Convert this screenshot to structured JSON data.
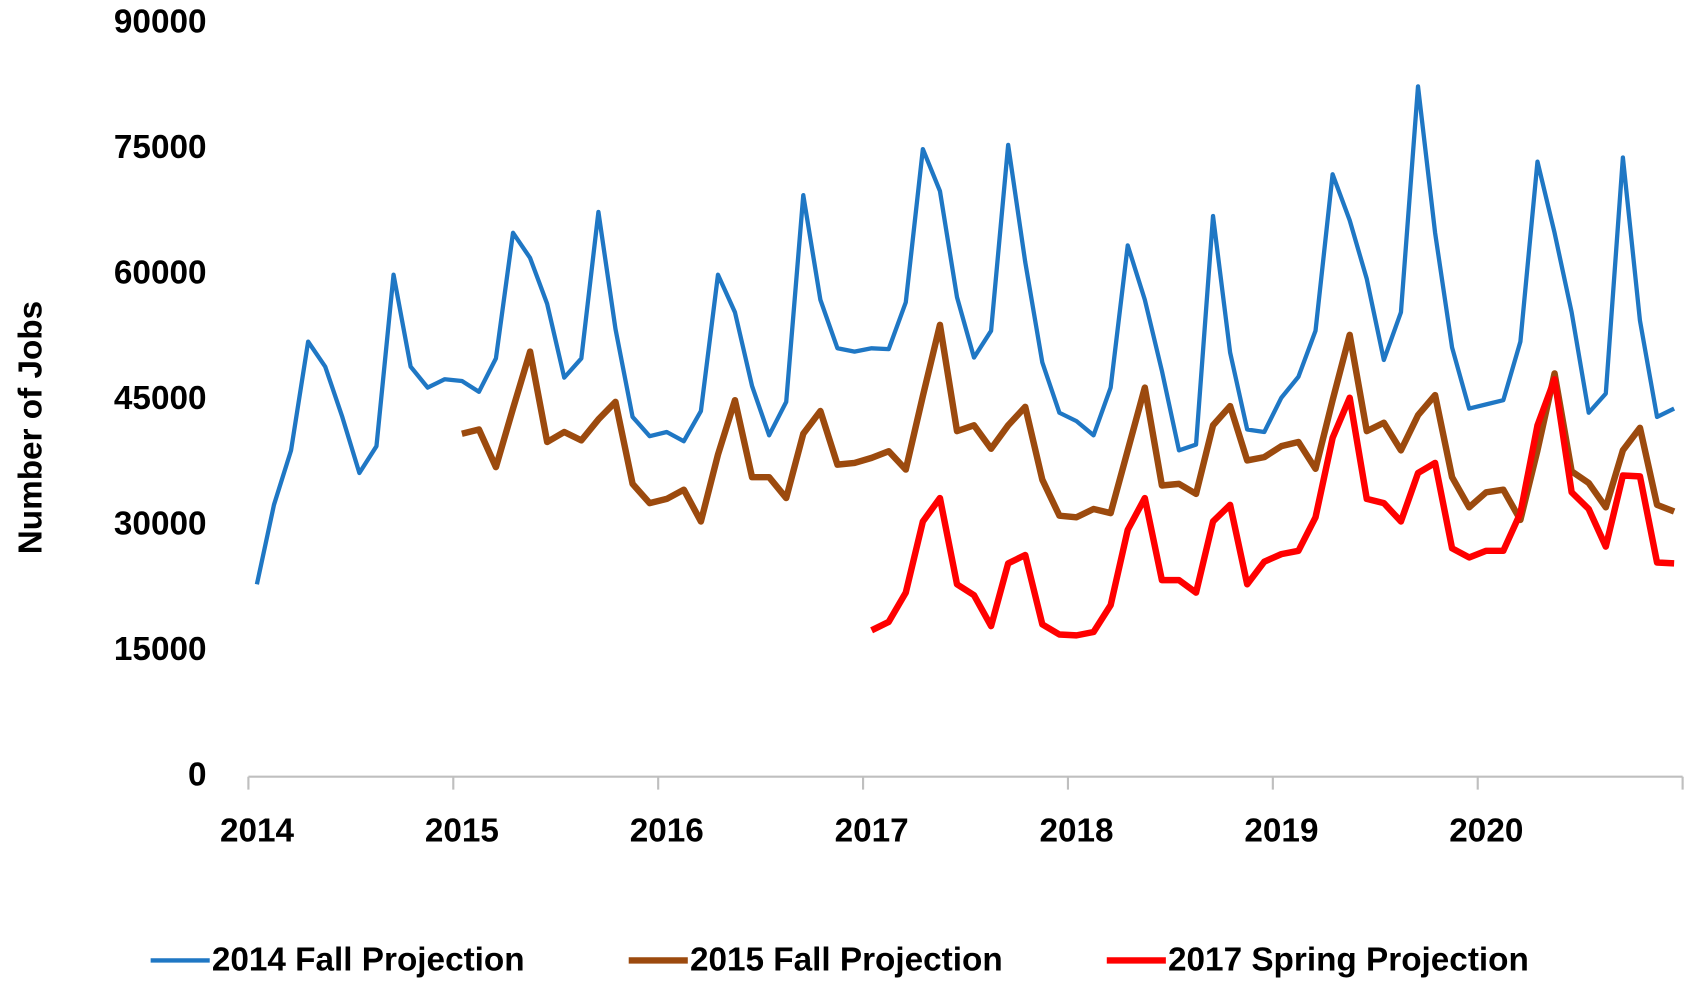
{
  "chart_data": {
    "type": "line",
    "y_label": "Number of Jobs",
    "categories": [
      "2014",
      null,
      null,
      null,
      null,
      null,
      null,
      null,
      null,
      null,
      null,
      null,
      "2015",
      null,
      null,
      null,
      null,
      null,
      null,
      null,
      null,
      null,
      null,
      null,
      "2016",
      null,
      null,
      null,
      null,
      null,
      null,
      null,
      null,
      null,
      null,
      null,
      "2017",
      null,
      null,
      null,
      null,
      null,
      null,
      null,
      null,
      null,
      null,
      null,
      "2018",
      null,
      null,
      null,
      null,
      null,
      null,
      null,
      null,
      null,
      null,
      null,
      "2019",
      null,
      null,
      null,
      null,
      null,
      null,
      null,
      null,
      null,
      null,
      null,
      "2020",
      null,
      null,
      null,
      null,
      null,
      null,
      null,
      null,
      null,
      null,
      null
    ],
    "ylim": [
      0,
      90000
    ],
    "yticks": [
      0,
      15000,
      30000,
      45000,
      60000,
      75000,
      90000
    ],
    "grid": false,
    "legend": "bottom",
    "series": [
      {
        "name": "2014 Fall Projection",
        "color": "#1f77c4",
        "width": 4,
        "values": [
          23000,
          32500,
          39000,
          52000,
          49000,
          43000,
          36300,
          39500,
          60000,
          49000,
          46500,
          47500,
          47300,
          46000,
          50000,
          65000,
          62000,
          56500,
          47700,
          50000,
          67500,
          53500,
          43000,
          40700,
          41200,
          40100,
          43700,
          60000,
          55500,
          46700,
          40800,
          44800,
          69500,
          57000,
          51200,
          50800,
          51200,
          51100,
          56700,
          75000,
          70000,
          57300,
          50100,
          53300,
          75500,
          61500,
          49500,
          43500,
          42500,
          40800,
          46500,
          63500,
          57000,
          48500,
          39000,
          39700,
          67000,
          50700,
          41500,
          41200,
          45300,
          47800,
          53300,
          72000,
          66500,
          59500,
          49800,
          55500,
          82500,
          65000,
          51300,
          44000,
          44500,
          45000,
          52000,
          73500,
          65000,
          55500,
          43500,
          45800,
          74000,
          54500,
          43000,
          44000
        ]
      },
      {
        "name": "2015 Fall Projection",
        "color": "#9c4a0e",
        "width": 6,
        "values": [
          null,
          null,
          null,
          null,
          null,
          null,
          null,
          null,
          null,
          null,
          null,
          null,
          41000,
          41500,
          37000,
          44000,
          50800,
          40000,
          41200,
          40200,
          42700,
          44800,
          35000,
          32700,
          33200,
          34300,
          30500,
          38500,
          45000,
          35800,
          35800,
          33300,
          41000,
          43700,
          37300,
          37500,
          38100,
          38900,
          36700,
          45500,
          54000,
          41300,
          42000,
          39200,
          42000,
          44200,
          35500,
          31200,
          31000,
          32000,
          31500,
          39000,
          46500,
          34800,
          35000,
          33800,
          42000,
          44300,
          37800,
          38200,
          39500,
          40000,
          36800,
          45000,
          52800,
          41300,
          42300,
          39000,
          43200,
          45600,
          35800,
          32200,
          34000,
          34300,
          30700,
          39000,
          48200,
          36500,
          35100,
          32200,
          39000,
          41700,
          32500,
          31700
        ]
      },
      {
        "name": "2017 Spring Projection",
        "color": "#ff0000",
        "width": 6,
        "values": [
          null,
          null,
          null,
          null,
          null,
          null,
          null,
          null,
          null,
          null,
          null,
          null,
          null,
          null,
          null,
          null,
          null,
          null,
          null,
          null,
          null,
          null,
          null,
          null,
          null,
          null,
          null,
          null,
          null,
          null,
          null,
          null,
          null,
          null,
          null,
          null,
          17500,
          18500,
          22000,
          30500,
          33300,
          23000,
          21700,
          18000,
          25500,
          26500,
          18200,
          17000,
          16900,
          17300,
          20500,
          29500,
          33300,
          23500,
          23500,
          22000,
          30500,
          32500,
          23000,
          25700,
          26600,
          27000,
          31000,
          40500,
          45300,
          33200,
          32700,
          30500,
          36300,
          37500,
          27300,
          26200,
          27000,
          27000,
          31500,
          42000,
          47500,
          34000,
          32000,
          27500,
          36000,
          35900,
          25600,
          25500
        ]
      }
    ]
  }
}
